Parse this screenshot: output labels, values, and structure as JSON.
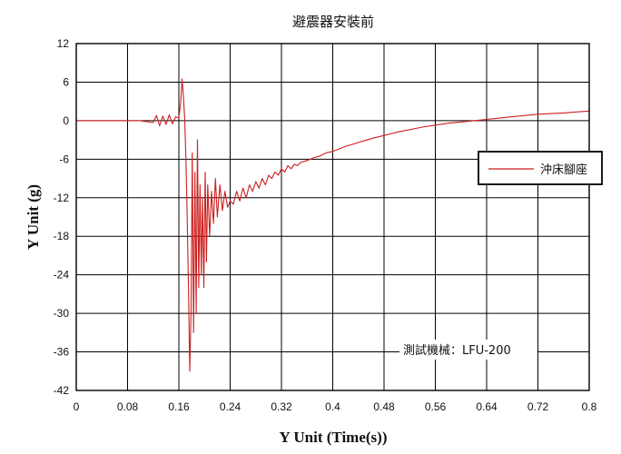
{
  "chart_data": {
    "type": "line",
    "title": "避震器安裝前",
    "xlabel": "Y Unit (Time(s))",
    "ylabel": "Y Unit (g)",
    "xlim": [
      0,
      0.8
    ],
    "ylim": [
      -42,
      12
    ],
    "xticks": [
      "0",
      "0.08",
      "0.16",
      "0.24",
      "0.32",
      "0.4",
      "0.48",
      "0.56",
      "0.64",
      "0.72",
      "0.8"
    ],
    "yticks": [
      "12",
      "6",
      "0",
      "-6",
      "-12",
      "-18",
      "-24",
      "-30",
      "-36",
      "-42"
    ],
    "grid": true,
    "legend_position": "right",
    "annotation": "測試機械：LFU-200",
    "colors": {
      "series": "#cc1f1f",
      "grid": "#000000"
    },
    "series": [
      {
        "name": "沖床腳座",
        "x": [
          0,
          0.05,
          0.1,
          0.12,
          0.125,
          0.13,
          0.135,
          0.14,
          0.145,
          0.15,
          0.155,
          0.16,
          0.163,
          0.165,
          0.167,
          0.169,
          0.171,
          0.173,
          0.175,
          0.177,
          0.179,
          0.181,
          0.183,
          0.185,
          0.187,
          0.189,
          0.191,
          0.193,
          0.195,
          0.197,
          0.199,
          0.201,
          0.203,
          0.205,
          0.208,
          0.211,
          0.214,
          0.217,
          0.22,
          0.224,
          0.228,
          0.232,
          0.236,
          0.24,
          0.245,
          0.25,
          0.255,
          0.26,
          0.265,
          0.27,
          0.275,
          0.28,
          0.285,
          0.29,
          0.295,
          0.3,
          0.305,
          0.31,
          0.315,
          0.32,
          0.325,
          0.33,
          0.335,
          0.34,
          0.345,
          0.35,
          0.36,
          0.37,
          0.38,
          0.39,
          0.4,
          0.41,
          0.42,
          0.43,
          0.44,
          0.45,
          0.46,
          0.48,
          0.5,
          0.52,
          0.54,
          0.56,
          0.58,
          0.6,
          0.62,
          0.64,
          0.66,
          0.68,
          0.7,
          0.72,
          0.74,
          0.76,
          0.78,
          0.8
        ],
        "y": [
          0,
          0,
          0,
          -0.3,
          0.8,
          -0.8,
          0.7,
          -0.6,
          0.9,
          -0.5,
          0.6,
          0.4,
          3,
          6.5,
          4,
          0.5,
          -6,
          -15,
          -26,
          -39,
          -30,
          -5,
          -33,
          -8,
          -30,
          -3,
          -26,
          -10,
          -24,
          -12,
          -26,
          -8,
          -22,
          -10,
          -18,
          -11,
          -16,
          -9,
          -15,
          -10,
          -14,
          -11,
          -13.5,
          -12.5,
          -13,
          -11,
          -12.5,
          -10.5,
          -12,
          -10,
          -11,
          -9.5,
          -10.5,
          -9,
          -10,
          -8.5,
          -9,
          -8,
          -8.5,
          -7.5,
          -8,
          -7,
          -7.5,
          -6.8,
          -7,
          -6.5,
          -6.2,
          -5.8,
          -5.5,
          -5,
          -4.8,
          -4.4,
          -4,
          -3.7,
          -3.4,
          -3.1,
          -2.8,
          -2.3,
          -1.8,
          -1.4,
          -1.0,
          -0.7,
          -0.4,
          -0.2,
          0,
          0.2,
          0.4,
          0.6,
          0.8,
          1.0,
          1.1,
          1.2,
          1.35,
          1.5
        ]
      }
    ]
  }
}
